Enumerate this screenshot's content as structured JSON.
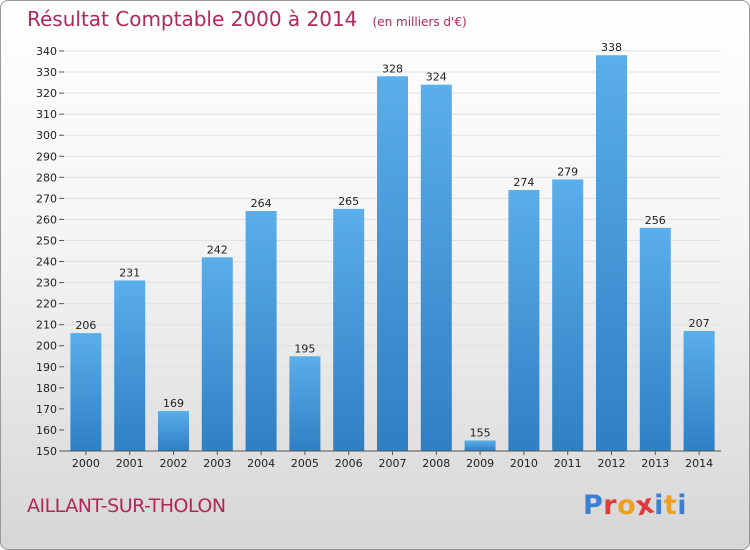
{
  "header": {
    "title": "Résultat Comptable 2000 à 2014",
    "subtitle": "(en milliers d'€)"
  },
  "footer": {
    "place": "AILLANT-SUR-THOLON",
    "logo_letters": [
      "P",
      "r",
      "o",
      "x",
      "i",
      "t",
      "i"
    ]
  },
  "colors": {
    "title": "#b0285a",
    "bar_light": "#5aaeea",
    "bar_dark": "#2f7fc4",
    "logo": [
      "#3d7fd0",
      "#e23a3a",
      "#f0a020",
      "#e23a3a",
      "#3d7fd0",
      "#f0a020",
      "#3d7fd0"
    ]
  },
  "chart_data": {
    "type": "bar",
    "categories": [
      "2000",
      "2001",
      "2002",
      "2003",
      "2004",
      "2005",
      "2006",
      "2007",
      "2008",
      "2009",
      "2010",
      "2011",
      "2012",
      "2013",
      "2014"
    ],
    "values": [
      206,
      231,
      169,
      242,
      264,
      195,
      265,
      328,
      324,
      155,
      274,
      279,
      338,
      256,
      207
    ],
    "title": "Résultat Comptable 2000 à 2014",
    "subtitle": "(en milliers d'€)",
    "xlabel": "",
    "ylabel": "",
    "ylim": [
      150,
      340
    ],
    "yticks": [
      150,
      160,
      170,
      180,
      190,
      200,
      210,
      220,
      230,
      240,
      250,
      260,
      270,
      280,
      290,
      300,
      310,
      320,
      330,
      340
    ],
    "grid": true,
    "legend": "none"
  }
}
